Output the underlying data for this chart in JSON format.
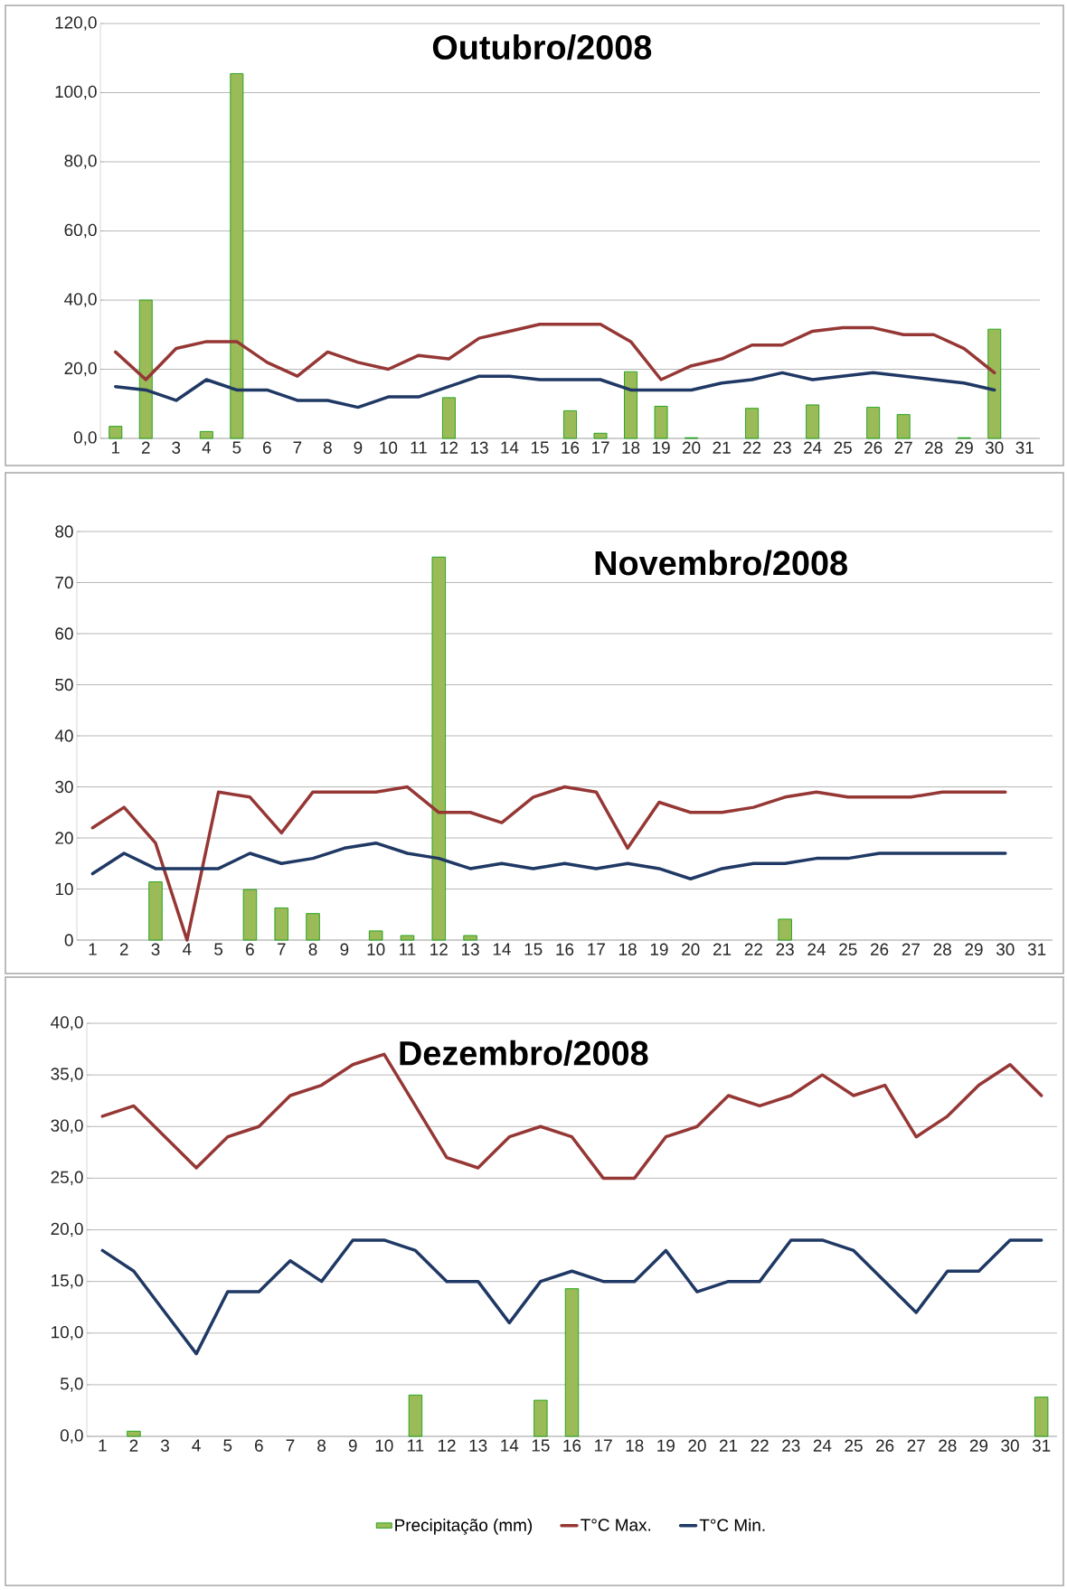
{
  "chart_data": [
    {
      "type": "bar",
      "title": "Outubro/2008",
      "categories": [
        "1",
        "2",
        "3",
        "4",
        "5",
        "6",
        "7",
        "8",
        "9",
        "10",
        "11",
        "12",
        "13",
        "14",
        "15",
        "16",
        "17",
        "18",
        "19",
        "20",
        "21",
        "22",
        "23",
        "24",
        "25",
        "26",
        "27",
        "28",
        "29",
        "30",
        "31"
      ],
      "series": [
        {
          "color": "#9bbb59",
          "values": [
            3.5,
            40,
            null,
            2,
            105.5,
            null,
            null,
            null,
            null,
            null,
            null,
            11.8,
            null,
            null,
            null,
            8,
            1.5,
            19.3,
            9.3,
            0.2,
            null,
            8.7,
            null,
            9.7,
            null,
            9,
            6.9,
            null,
            0.2,
            31.6,
            null
          ]
        },
        {
          "type": "line",
          "color": "#953735",
          "values": [
            25,
            17,
            26,
            28,
            28,
            22,
            18,
            25,
            22,
            20,
            24,
            23,
            29,
            31,
            33,
            33,
            33,
            28,
            17,
            21,
            23,
            27,
            27,
            31,
            32,
            32,
            30,
            30,
            26,
            19,
            null
          ]
        },
        {
          "type": "line",
          "color": "#1f3864",
          "values": [
            15,
            14,
            11,
            17,
            14,
            14,
            11,
            11,
            9,
            12,
            12,
            15,
            18,
            18,
            17,
            17,
            17,
            14,
            14,
            14,
            16,
            17,
            19,
            17,
            18,
            19,
            18,
            17,
            16,
            14,
            null
          ]
        }
      ],
      "ylim": [
        0,
        120
      ],
      "yticks": [
        {
          "value": 0,
          "label": "0,0"
        },
        {
          "value": 20,
          "label": "20,0"
        },
        {
          "value": 40,
          "label": "40,0"
        },
        {
          "value": 60,
          "label": "60,0"
        },
        {
          "value": 80,
          "label": "80,0"
        },
        {
          "value": 100,
          "label": "100,0"
        },
        {
          "value": 120,
          "label": "120,0"
        }
      ],
      "grid": "y"
    },
    {
      "type": "bar",
      "title": "Novembro/2008",
      "categories": [
        "1",
        "2",
        "3",
        "4",
        "5",
        "6",
        "7",
        "8",
        "9",
        "10",
        "11",
        "12",
        "13",
        "14",
        "15",
        "16",
        "17",
        "18",
        "19",
        "20",
        "21",
        "22",
        "23",
        "24",
        "25",
        "26",
        "27",
        "28",
        "29",
        "30",
        "31"
      ],
      "series": [
        {
          "color": "#9bbb59",
          "values": [
            null,
            null,
            11.4,
            null,
            null,
            9.9,
            6.3,
            5.2,
            null,
            1.8,
            0.9,
            75,
            0.9,
            null,
            null,
            null,
            null,
            null,
            null,
            null,
            null,
            null,
            4.1,
            null,
            null,
            null,
            null,
            null,
            null,
            null,
            null
          ]
        },
        {
          "type": "line",
          "color": "#953735",
          "values": [
            22,
            26,
            19,
            0,
            29,
            28,
            21,
            29,
            29,
            29,
            30,
            25,
            25,
            23,
            28,
            30,
            29,
            18,
            27,
            25,
            25,
            26,
            28,
            29,
            28,
            28,
            28,
            29,
            29,
            29,
            null
          ]
        },
        {
          "type": "line",
          "color": "#1f3864",
          "values": [
            13,
            17,
            14,
            14,
            14,
            17,
            15,
            16,
            18,
            19,
            17,
            16,
            14,
            15,
            14,
            15,
            14,
            15,
            14,
            12,
            14,
            15,
            15,
            16,
            16,
            17,
            17,
            17,
            17,
            17,
            null
          ]
        }
      ],
      "ylim": [
        0,
        80
      ],
      "yticks": [
        0,
        10,
        20,
        30,
        40,
        50,
        60,
        70,
        80
      ],
      "grid": "y"
    },
    {
      "type": "bar",
      "title": "Dezembro/2008",
      "categories": [
        "1",
        "2",
        "3",
        "4",
        "5",
        "6",
        "7",
        "8",
        "9",
        "10",
        "11",
        "12",
        "13",
        "14",
        "15",
        "16",
        "17",
        "18",
        "19",
        "20",
        "21",
        "22",
        "23",
        "24",
        "25",
        "26",
        "27",
        "28",
        "29",
        "30",
        "31"
      ],
      "series": [
        {
          "name": "Precipitação (mm)",
          "color": "#9bbb59",
          "values": [
            null,
            0.5,
            null,
            null,
            null,
            null,
            null,
            null,
            null,
            null,
            4,
            null,
            null,
            null,
            3.5,
            14.3,
            null,
            null,
            null,
            null,
            null,
            null,
            null,
            null,
            null,
            null,
            null,
            null,
            null,
            null,
            3.8
          ]
        },
        {
          "type": "line",
          "name": "T°C Max.",
          "color": "#953735",
          "values": [
            31,
            32,
            29,
            26,
            29,
            30,
            33,
            34,
            36,
            37,
            32,
            27,
            26,
            29,
            30,
            29,
            25,
            25,
            29,
            30,
            33,
            32,
            33,
            35,
            33,
            34,
            29,
            31,
            34,
            36,
            33
          ]
        },
        {
          "type": "line",
          "name": "T°C Min.",
          "color": "#1f3864",
          "values": [
            18,
            16,
            12,
            8,
            14,
            14,
            17,
            15,
            19,
            19,
            18,
            15,
            15,
            11,
            15,
            16,
            15,
            15,
            18,
            14,
            15,
            15,
            19,
            19,
            18,
            15,
            12,
            16,
            16,
            19,
            19
          ]
        }
      ],
      "ylim": [
        0,
        40
      ],
      "yticks": [
        {
          "value": 0,
          "label": "0,0"
        },
        {
          "value": 5,
          "label": "5,0"
        },
        {
          "value": 10,
          "label": "10,0"
        },
        {
          "value": 15,
          "label": "15,0"
        },
        {
          "value": 20,
          "label": "20,0"
        },
        {
          "value": 25,
          "label": "25,0"
        },
        {
          "value": 30,
          "label": "30,0"
        },
        {
          "value": 35,
          "label": "35,0"
        },
        {
          "value": 40,
          "label": "40,0"
        }
      ],
      "grid": "y",
      "legend": "bottom"
    }
  ]
}
